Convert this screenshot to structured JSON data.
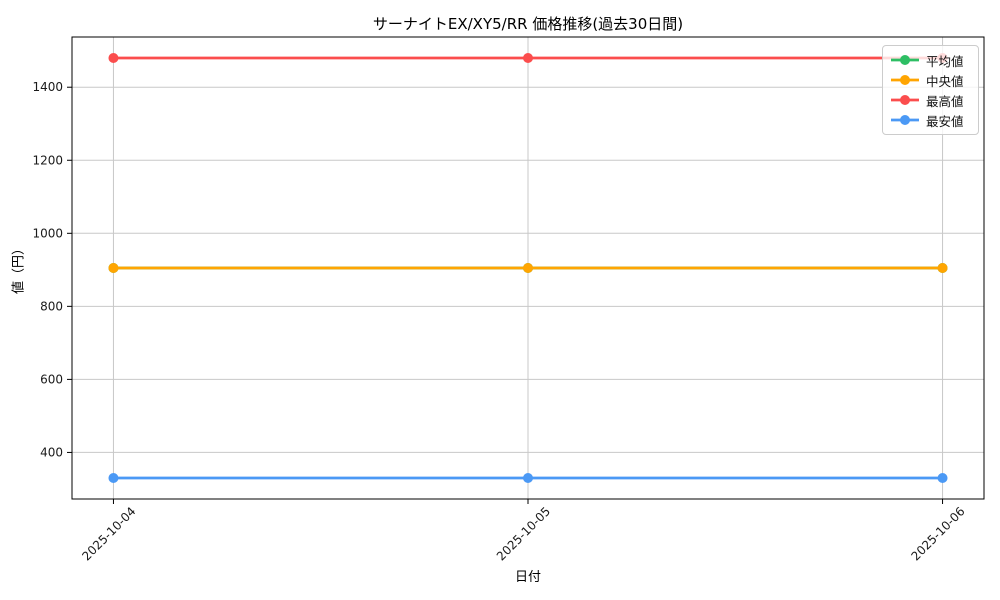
{
  "figure": {
    "title": "サーナイトEX/XY5/RR 価格推移(過去30日間)"
  },
  "chart_data": {
    "type": "line",
    "title": "サーナイトEX/XY5/RR 価格推移(過去30日間)",
    "xlabel": "日付",
    "ylabel": "値（円）",
    "categories": [
      "2025-10-04",
      "2025-10-05",
      "2025-10-06"
    ],
    "series": [
      {
        "name": "平均値",
        "values": [
          905,
          905,
          905
        ],
        "color": "#2dbe64"
      },
      {
        "name": "中央値",
        "values": [
          905,
          905,
          905
        ],
        "color": "#ffa502"
      },
      {
        "name": "最高値",
        "values": [
          1480,
          1480,
          1480
        ],
        "color": "#fb4d4d"
      },
      {
        "name": "最安値",
        "values": [
          330,
          330,
          330
        ],
        "color": "#4b99f5"
      }
    ],
    "yticks": [
      400,
      600,
      800,
      1000,
      1200,
      1400
    ],
    "ylim": [
      272.5,
      1537.5
    ],
    "xlim": [
      -0.1,
      2.1
    ],
    "grid": true,
    "legend_position": "upper-right",
    "colors": {
      "grid": "#c8c8c8",
      "spine": "#000000",
      "tick_text": "#1a1a1a"
    }
  }
}
